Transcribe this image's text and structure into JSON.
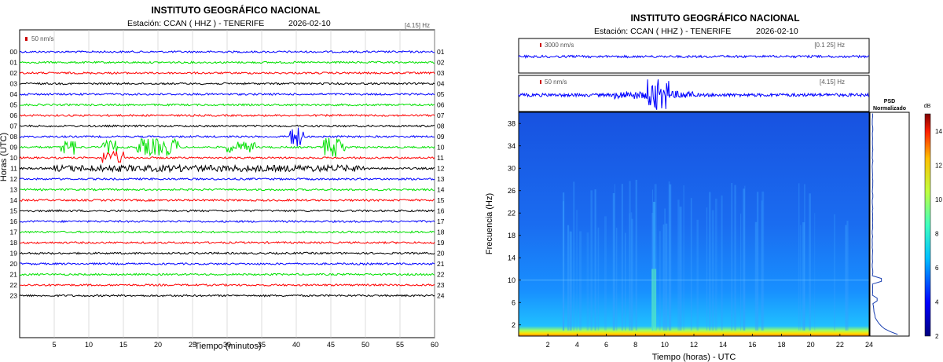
{
  "left": {
    "title": "INSTITUTO GEOGRÁFICO NACIONAL",
    "station_label": "Estación:  CCAN ( HHZ ) - TENERIFE",
    "date": "2026-02-10",
    "band": "[4.15] Hz",
    "scale_label": "50 nm/s",
    "ylabel": "Horas (UTC)",
    "xlabel": "Tiempo (minutos)",
    "left_ticks": [
      "00",
      "01",
      "02",
      "03",
      "04",
      "05",
      "06",
      "07",
      "08",
      "09",
      "10",
      "11",
      "12",
      "13",
      "14",
      "15",
      "16",
      "17",
      "18",
      "19",
      "20",
      "21",
      "22",
      "23"
    ],
    "right_ticks": [
      "01",
      "02",
      "03",
      "04",
      "05",
      "06",
      "07",
      "08",
      "09",
      "10",
      "11",
      "12",
      "13",
      "14",
      "15",
      "16",
      "17",
      "18",
      "19",
      "20",
      "21",
      "22",
      "23",
      "24"
    ],
    "trace_colors": [
      "#0000ff",
      "#00e000",
      "#ff0000",
      "#000000"
    ]
  },
  "right": {
    "title": "INSTITUTO GEOGRÁFICO NACIONAL",
    "station_label": "Estación:  CCAN ( HHZ ) - TENERIFE",
    "date": "2026-02-10",
    "top_trace_scale": "3000 nm/s",
    "top_trace_band": "[0.1 25] Hz",
    "mid_trace_scale": "50 nm/s",
    "mid_trace_band": "[4.15] Hz",
    "ylabel": "Frecuencia (Hz)",
    "xlabel": "Tiempo (horas) - UTC",
    "psd_title_1": "PSD",
    "psd_title_2": "Normalizado",
    "colorbar_unit": "dB",
    "colorbar_ticks": [
      "2",
      "4",
      "6",
      "8",
      "10",
      "12",
      "14"
    ]
  },
  "chart_data": [
    {
      "type": "line",
      "title": "INSTITUTO GEOGRÁFICO NACIONAL",
      "subtitle": "Estación:  CCAN ( HHZ ) - TENERIFE   2026-02-10",
      "xlabel": "Tiempo (minutos)",
      "ylabel": "Horas (UTC)",
      "x_ticks": [
        5,
        10,
        15,
        20,
        25,
        30,
        35,
        40,
        45,
        50,
        55,
        60
      ],
      "xlim": [
        0,
        60
      ],
      "y_rows": 24,
      "grid": true,
      "events": [
        {
          "hour": 9,
          "minute_start": 6,
          "minute_end": 8,
          "amplitude": 0.7
        },
        {
          "hour": 9,
          "minute_start": 12,
          "minute_end": 14,
          "amplitude": 0.6
        },
        {
          "hour": 9,
          "minute_start": 17,
          "minute_end": 23,
          "amplitude": 0.8
        },
        {
          "hour": 9,
          "minute_start": 30,
          "minute_end": 34,
          "amplitude": 0.5
        },
        {
          "hour": 9,
          "minute_start": 44,
          "minute_end": 47,
          "amplitude": 0.9
        },
        {
          "hour": 10,
          "minute_start": 12,
          "minute_end": 15,
          "amplitude": 0.6
        },
        {
          "hour": 8,
          "minute_start": 39,
          "minute_end": 41,
          "amplitude": 0.9
        },
        {
          "hour": 11,
          "minute_start": 5,
          "minute_end": 50,
          "amplitude": 0.3
        }
      ]
    },
    {
      "type": "heatmap",
      "title": "INSTITUTO GEOGRÁFICO NACIONAL",
      "xlabel": "Tiempo (horas) - UTC",
      "ylabel": "Frecuencia (Hz)",
      "x_ticks": [
        2,
        4,
        6,
        8,
        10,
        12,
        14,
        16,
        18,
        20,
        22,
        24
      ],
      "y_ticks": [
        2,
        6,
        10,
        14,
        18,
        22,
        26,
        30,
        34,
        38
      ],
      "xlim": [
        0,
        24
      ],
      "ylim": [
        0,
        40
      ],
      "colorbar": {
        "label": "dB",
        "range": [
          2,
          15
        ],
        "ticks": [
          2,
          4,
          6,
          8,
          10,
          12,
          14
        ]
      },
      "note": ""
    }
  ]
}
